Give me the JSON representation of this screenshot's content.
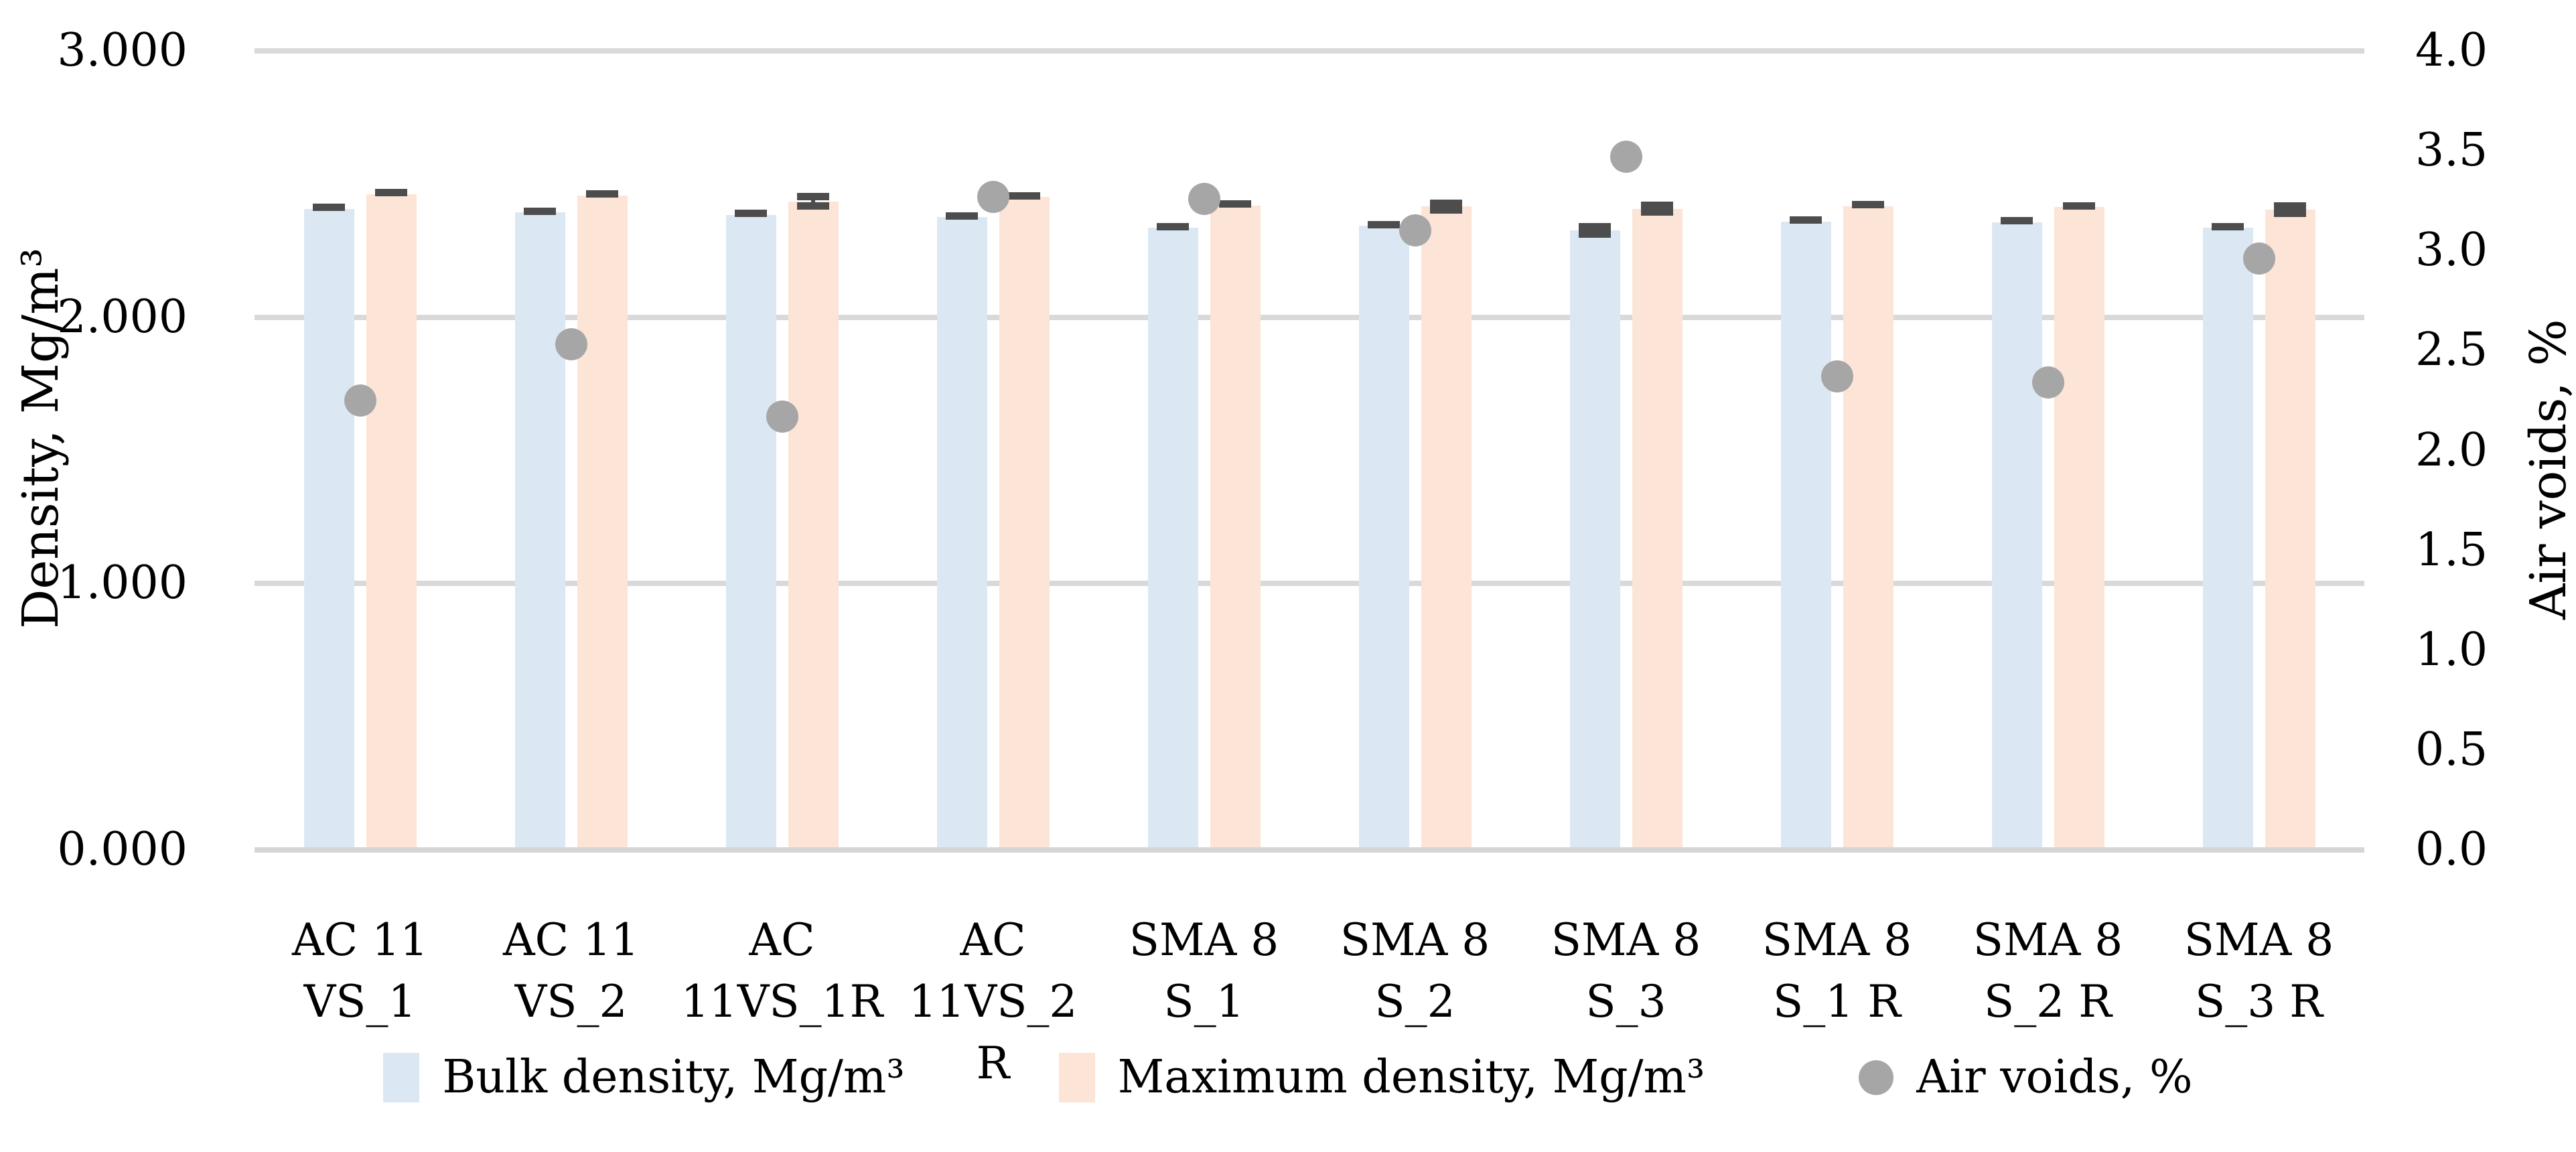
{
  "chart_data": {
    "type": "bar",
    "title": "",
    "grid": "horizontal-major",
    "legend_position": "bottom-center",
    "left_axis": {
      "title": "Density, Mg/m³",
      "min": 0,
      "max": 3,
      "ticks": [
        "3.000",
        "2.000",
        "1.000",
        "0.000"
      ],
      "tick_values": [
        3,
        2,
        1,
        0
      ]
    },
    "right_axis": {
      "title": "Air voids, %",
      "min": 0,
      "max": 4,
      "ticks": [
        "4.0",
        "3.5",
        "3.0",
        "2.5",
        "2.0",
        "1.5",
        "1.0",
        "0.5",
        "0.0"
      ],
      "tick_values": [
        4.0,
        3.5,
        3.0,
        2.5,
        2.0,
        1.5,
        1.0,
        0.5,
        0.0
      ]
    },
    "categories": [
      "AC 11\nVS_1",
      "AC 11\nVS_2",
      "AC\n11VS_1R",
      "AC\n11VS_2 R",
      "SMA 8\nS_1",
      "SMA 8\nS_2",
      "SMA 8\nS_3",
      "SMA 8\nS_1 R",
      "SMA 8\nS_2 R",
      "SMA 8\nS_3 R"
    ],
    "series": [
      {
        "name": "Bulk density, Mg/m³",
        "axis": "left",
        "marker": "bar",
        "color": "#dbe8f4",
        "values": [
          2.407,
          2.393,
          2.384,
          2.376,
          2.336,
          2.343,
          2.326,
          2.36,
          2.357,
          2.335
        ],
        "errors": [
          0.004,
          0.004,
          0.004,
          0.005,
          0.012,
          0.01,
          0.014,
          0.005,
          0.005,
          0.005
        ]
      },
      {
        "name": "Maximum density, Mg/m³",
        "axis": "left",
        "marker": "bar",
        "color": "#fce4d6",
        "values": [
          2.462,
          2.458,
          2.435,
          2.451,
          2.42,
          2.416,
          2.407,
          2.417,
          2.413,
          2.405
        ],
        "errors": [
          0.005,
          0.005,
          0.018,
          0.006,
          0.006,
          0.013,
          0.013,
          0.006,
          0.005,
          0.014
        ]
      },
      {
        "name": "Air voids, %",
        "axis": "right",
        "marker": "circle",
        "color": "#a6a6a6",
        "values": [
          2.25,
          2.53,
          2.17,
          3.27,
          3.26,
          3.1,
          3.47,
          2.37,
          2.34,
          2.96
        ]
      }
    ],
    "error_bar_color": "#4d4d4d",
    "gridline_color": "#d9d9d9",
    "legend": [
      {
        "label": "Bulk density, Mg/m³",
        "swatch": "square",
        "color": "#dbe8f4"
      },
      {
        "label": "Maximum density, Mg/m³",
        "swatch": "square",
        "color": "#fce4d6"
      },
      {
        "label": "Air voids, %",
        "swatch": "circle",
        "color": "#a6a6a6"
      }
    ]
  }
}
